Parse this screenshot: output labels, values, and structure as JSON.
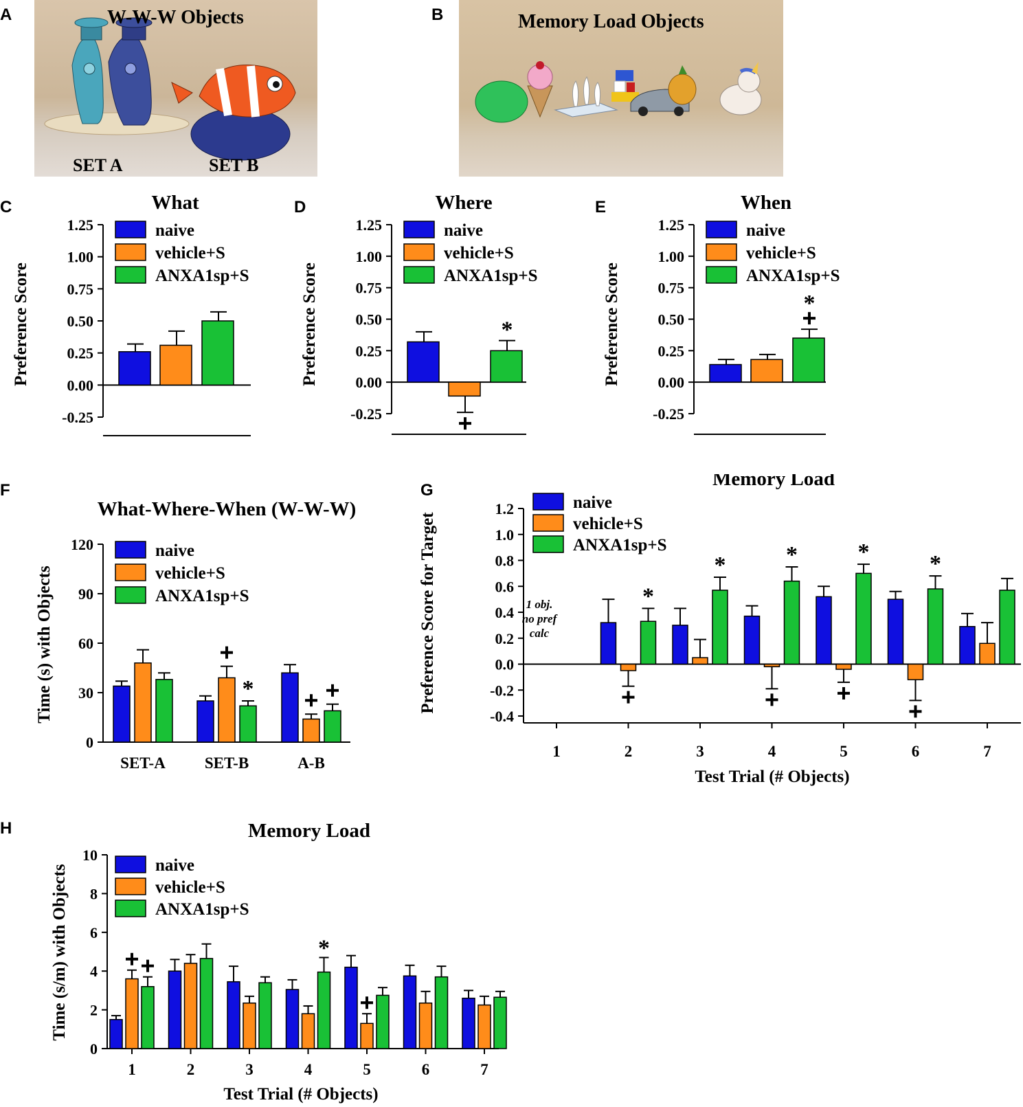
{
  "panel_letters": [
    "A",
    "B",
    "C",
    "D",
    "E",
    "F",
    "G",
    "H"
  ],
  "photo_a": {
    "title": "W-W-W  Objects",
    "label_left": "SET A",
    "label_right": "SET B"
  },
  "photo_b": {
    "title": "Memory Load  Objects"
  },
  "colors": {
    "naive": "#0f0fe0",
    "vehicle": "#ff8c1a",
    "anx": "#19c136"
  },
  "chart_data": [
    {
      "id": "C",
      "type": "bar",
      "title": "What",
      "ylabel": "Preference Score",
      "ylim": [
        -0.25,
        1.25
      ],
      "yticks": [
        "1.25",
        "1.00",
        "0.75",
        "0.50",
        "0.25",
        "0.00",
        "-0.25"
      ],
      "legend": [
        "naive",
        "vehicle+S",
        "ANXA1sp+S"
      ],
      "values": [
        0.26,
        0.31,
        0.5
      ],
      "errors": [
        0.06,
        0.11,
        0.07
      ],
      "marks": [
        "",
        "",
        ""
      ]
    },
    {
      "id": "D",
      "type": "bar",
      "title": "Where",
      "ylabel": "Preference Score",
      "ylim": [
        -0.25,
        1.25
      ],
      "yticks": [
        "1.25",
        "1.00",
        "0.75",
        "0.50",
        "0.25",
        "0.00",
        "-0.25"
      ],
      "legend": [
        "naive",
        "vehicle+S",
        "ANXA1sp+S"
      ],
      "values": [
        0.32,
        -0.11,
        0.25
      ],
      "errors": [
        0.08,
        0.13,
        0.08
      ],
      "marks": [
        "",
        "+",
        "*"
      ]
    },
    {
      "id": "E",
      "type": "bar",
      "title": "When",
      "ylabel": "Preference Score",
      "ylim": [
        -0.25,
        1.25
      ],
      "yticks": [
        "1.25",
        "1.00",
        "0.75",
        "0.50",
        "0.25",
        "0.00",
        "-0.25"
      ],
      "legend": [
        "naive",
        "vehicle+S",
        "ANXA1sp+S"
      ],
      "values": [
        0.14,
        0.18,
        0.35
      ],
      "errors": [
        0.04,
        0.04,
        0.07
      ],
      "marks": [
        "",
        "",
        "+*"
      ]
    },
    {
      "id": "F",
      "type": "bar",
      "title": "What-Where-When (W-W-W)",
      "ylabel": "Time (s) with Objects",
      "ylim": [
        0,
        120
      ],
      "yticks": [
        "120",
        "90",
        "60",
        "30",
        "0"
      ],
      "legend": [
        "naive",
        "vehicle+S",
        "ANXA1sp+S"
      ],
      "categories": [
        "SET-A",
        "SET-B",
        "A-B"
      ],
      "series": [
        {
          "name": "naive",
          "values": [
            34,
            25,
            42
          ],
          "errors": [
            3,
            3,
            5
          ],
          "marks": [
            "",
            "",
            ""
          ]
        },
        {
          "name": "vehicle+S",
          "values": [
            48,
            39,
            14
          ],
          "errors": [
            8,
            7,
            3
          ],
          "marks": [
            "",
            "+",
            "+"
          ]
        },
        {
          "name": "ANXA1sp+S",
          "values": [
            38,
            22,
            19
          ],
          "errors": [
            4,
            3,
            4
          ],
          "marks": [
            "",
            "*",
            "+"
          ]
        }
      ]
    },
    {
      "id": "G",
      "type": "bar",
      "title": "Memory Load",
      "ylabel": "Preference Score for Target",
      "xlabel": "Test  Trial (# Objects)",
      "ylim": [
        -0.4,
        1.2
      ],
      "yticks": [
        "1.2",
        "1.0",
        "0.8",
        "0.6",
        "0.4",
        "0.2",
        "0.0",
        "-0.2",
        "-0.4"
      ],
      "legend": [
        "naive",
        "vehicle+S",
        "ANXA1sp+S"
      ],
      "categories": [
        "1",
        "2",
        "3",
        "4",
        "5",
        "6",
        "7"
      ],
      "annotation": [
        "1 obj.",
        "no pref",
        "calc"
      ],
      "series": [
        {
          "name": "naive",
          "values": [
            null,
            0.32,
            0.3,
            0.37,
            0.52,
            0.5,
            0.29
          ],
          "errors": [
            0,
            0.18,
            0.13,
            0.08,
            0.08,
            0.06,
            0.1
          ],
          "marks": [
            "",
            "",
            "",
            "",
            "",
            "",
            ""
          ]
        },
        {
          "name": "vehicle+S",
          "values": [
            null,
            -0.05,
            0.05,
            -0.02,
            -0.04,
            -0.12,
            0.16
          ],
          "errors": [
            0,
            0.12,
            0.14,
            0.17,
            0.1,
            0.16,
            0.16
          ],
          "marks": [
            "",
            "+",
            "",
            "+",
            "+",
            "+",
            ""
          ]
        },
        {
          "name": "ANXA1sp+S",
          "values": [
            null,
            0.33,
            0.57,
            0.64,
            0.7,
            0.58,
            0.57
          ],
          "errors": [
            0,
            0.1,
            0.1,
            0.11,
            0.07,
            0.1,
            0.09
          ],
          "marks": [
            "",
            "*",
            "*",
            "*",
            "*",
            "*",
            ""
          ]
        }
      ]
    },
    {
      "id": "H",
      "type": "bar",
      "title": "Memory Load",
      "ylabel": "Time (s/m) with Objects",
      "xlabel": "Test  Trial (# Objects)",
      "ylim": [
        0,
        10
      ],
      "yticks": [
        "10",
        "8",
        "6",
        "4",
        "2",
        "0"
      ],
      "legend": [
        "naive",
        "vehicle+S",
        "ANXA1sp+S"
      ],
      "categories": [
        "1",
        "2",
        "3",
        "4",
        "5",
        "6",
        "7"
      ],
      "series": [
        {
          "name": "naive",
          "values": [
            1.5,
            4.0,
            3.45,
            3.05,
            4.2,
            3.75,
            2.6
          ],
          "errors": [
            0.2,
            0.6,
            0.8,
            0.5,
            0.6,
            0.55,
            0.4
          ],
          "marks": [
            "",
            "",
            "",
            "",
            "",
            "",
            ""
          ]
        },
        {
          "name": "vehicle+S",
          "values": [
            3.6,
            4.4,
            2.35,
            1.8,
            1.3,
            2.35,
            2.25
          ],
          "errors": [
            0.45,
            0.45,
            0.35,
            0.4,
            0.5,
            0.6,
            0.45
          ],
          "marks": [
            "+",
            "",
            "",
            "",
            "+",
            "",
            ""
          ]
        },
        {
          "name": "ANXA1sp+S",
          "values": [
            3.2,
            4.65,
            3.4,
            3.95,
            2.75,
            3.7,
            2.65
          ],
          "errors": [
            0.5,
            0.75,
            0.3,
            0.75,
            0.4,
            0.55,
            0.3
          ],
          "marks": [
            "+",
            "",
            "",
            "*",
            "",
            "",
            ""
          ]
        }
      ]
    }
  ]
}
